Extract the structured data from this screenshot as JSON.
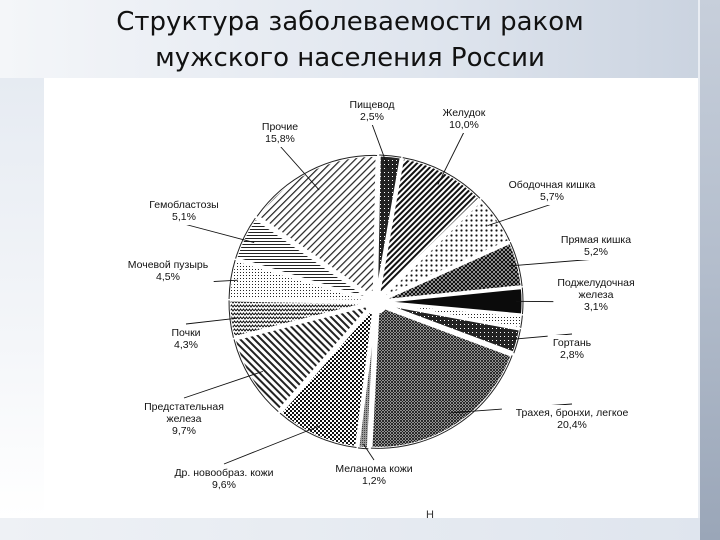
{
  "slide": {
    "title_line1": "Структура заболеваемости раком",
    "title_line2": "мужского населения России"
  },
  "chart_data": {
    "type": "pie",
    "title": "Структура заболеваемости раком мужского населения России",
    "value_unit": "%",
    "start": "top, clockwise",
    "slices": [
      {
        "name": "Пищевод",
        "label": "Пищевод",
        "value_label": "2,5%",
        "value": 2.5,
        "pattern": "dark"
      },
      {
        "name": "Желудок",
        "label": "Желудок",
        "value_label": "10,0%",
        "value": 10.0,
        "pattern": "diag-dense"
      },
      {
        "name": "Ободочная кишка",
        "label": "Ободочная кишка",
        "value_label": "5,7%",
        "value": 5.7,
        "pattern": "dots"
      },
      {
        "name": "Прямая кишка",
        "label": "Прямая кишка",
        "value_label": "5,2%",
        "value": 5.2,
        "pattern": "crosshatch"
      },
      {
        "name": "Поджелудочная железа",
        "label": "Поджелудочная железа",
        "value_label": "3,1%",
        "value": 3.1,
        "pattern": "black"
      },
      {
        "name": "Поджелудочная железа (2)",
        "label": "",
        "value_label": "",
        "value": 1.5,
        "pattern": "dots-fine"
      },
      {
        "name": "Гортань",
        "label": "Гортань",
        "value_label": "2,8%",
        "value": 2.8,
        "pattern": "dark"
      },
      {
        "name": "Трахея, бронхи, легкое",
        "label": "Трахея, бронхи, легкое",
        "value_label": "20,4%",
        "value": 20.4,
        "pattern": "crosshatch-fine"
      },
      {
        "name": "Меланома кожи",
        "label": "Меланома кожи",
        "value_label": "1,2%",
        "value": 1.2,
        "pattern": "gray"
      },
      {
        "name": "Др. новообраз. кожи",
        "label": "Др. новообраз. кожи",
        "value_label": "9,6%",
        "value": 9.6,
        "pattern": "checker"
      },
      {
        "name": "Предстательная железа",
        "label": "Предстательная железа",
        "value_label": "9,7%",
        "value": 9.7,
        "pattern": "diag-mid"
      },
      {
        "name": "Почки",
        "label": "Почки",
        "value_label": "4,3%",
        "value": 4.3,
        "pattern": "zigzag"
      },
      {
        "name": "Мочевой пузырь",
        "label": "Мочевой пузырь",
        "value_label": "4,5%",
        "value": 4.5,
        "pattern": "dots-fine"
      },
      {
        "name": "Гемобластозы",
        "label": "Гемобластозы",
        "value_label": "5,1%",
        "value": 5.1,
        "pattern": "hline"
      },
      {
        "name": "Прочие",
        "label": "Прочие",
        "value_label": "15,8%",
        "value": 15.8,
        "pattern": "diag-light"
      }
    ],
    "annotations": [
      "Н"
    ],
    "colors": {
      "ink": "#111111",
      "separator": "#ffffff"
    }
  }
}
